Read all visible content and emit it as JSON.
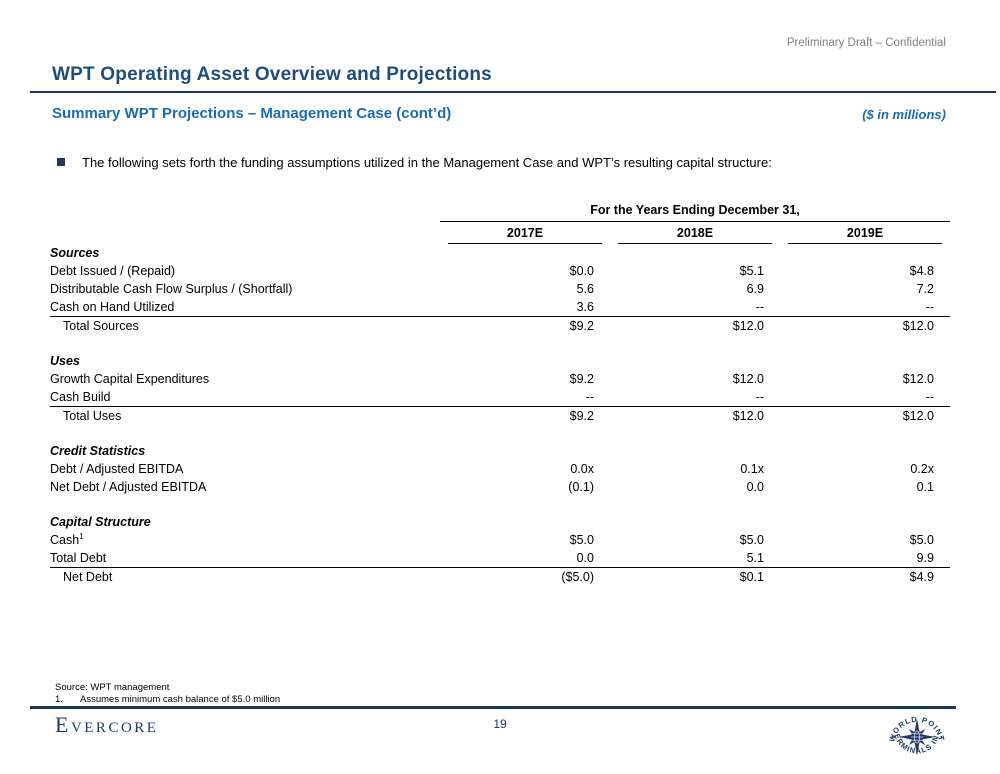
{
  "header": {
    "classification": "Preliminary Draft – Confidential",
    "title": "WPT Operating Asset Overview and Projections",
    "subtitle": "Summary WPT Projections – Management Case (cont’d)",
    "units_note": "($ in millions)"
  },
  "bullet": {
    "text": "The following sets forth the funding assumptions utilized in the Management Case and WPT’s resulting capital structure:"
  },
  "table": {
    "group_header": "For the Years Ending December 31,",
    "columns": [
      "2017E",
      "2018E",
      "2019E"
    ],
    "sections": [
      {
        "title": "Sources",
        "rows": [
          {
            "label": "Debt Issued / (Repaid)",
            "values": [
              "$0.0",
              "$5.1",
              "$4.8"
            ]
          },
          {
            "label": "Distributable Cash Flow Surplus / (Shortfall)",
            "values": [
              "5.6",
              "6.9",
              "7.2"
            ]
          },
          {
            "label": "Cash on Hand Utilized",
            "values": [
              "3.6",
              "--",
              "--"
            ]
          }
        ],
        "total": {
          "label": "Total Sources",
          "values": [
            "$9.2",
            "$12.0",
            "$12.0"
          ]
        }
      },
      {
        "title": "Uses",
        "rows": [
          {
            "label": "Growth Capital Expenditures",
            "values": [
              "$9.2",
              "$12.0",
              "$12.0"
            ]
          },
          {
            "label": "Cash Build",
            "values": [
              "--",
              "--",
              "--"
            ]
          }
        ],
        "total": {
          "label": "Total Uses",
          "values": [
            "$9.2",
            "$12.0",
            "$12.0"
          ]
        }
      },
      {
        "title": "Credit Statistics",
        "rows": [
          {
            "label": "Debt / Adjusted EBITDA",
            "values": [
              "0.0x",
              "0.1x",
              "0.2x"
            ]
          },
          {
            "label": "Net Debt / Adjusted EBITDA",
            "values": [
              "(0.1)",
              "0.0",
              "0.1"
            ]
          }
        ],
        "total": null
      },
      {
        "title": "Capital Structure",
        "rows": [
          {
            "label": "Cash",
            "sup": "1",
            "values": [
              "$5.0",
              "$5.0",
              "$5.0"
            ]
          },
          {
            "label": "Total Debt",
            "values": [
              "0.0",
              "5.1",
              "9.9"
            ]
          }
        ],
        "total": {
          "label": "Net Debt",
          "values": [
            "($5.0)",
            "$0.1",
            "$4.9"
          ]
        }
      }
    ]
  },
  "footnotes": {
    "source": "Source: WPT management",
    "note1_number": "1.",
    "note1_text": "Assumes minimum cash balance of $5.0 million"
  },
  "footer": {
    "brand": "Evercore",
    "page_number": "19",
    "logo_text_top": "WORLD POINT",
    "logo_text_bottom": "TERMINALS INC"
  },
  "colors": {
    "title_blue": "#1F4E79",
    "accent_blue": "#1B6CAE",
    "rule_navy": "#17375E",
    "logo_navy": "#1F3864",
    "gray_text": "#7F7F7F"
  }
}
